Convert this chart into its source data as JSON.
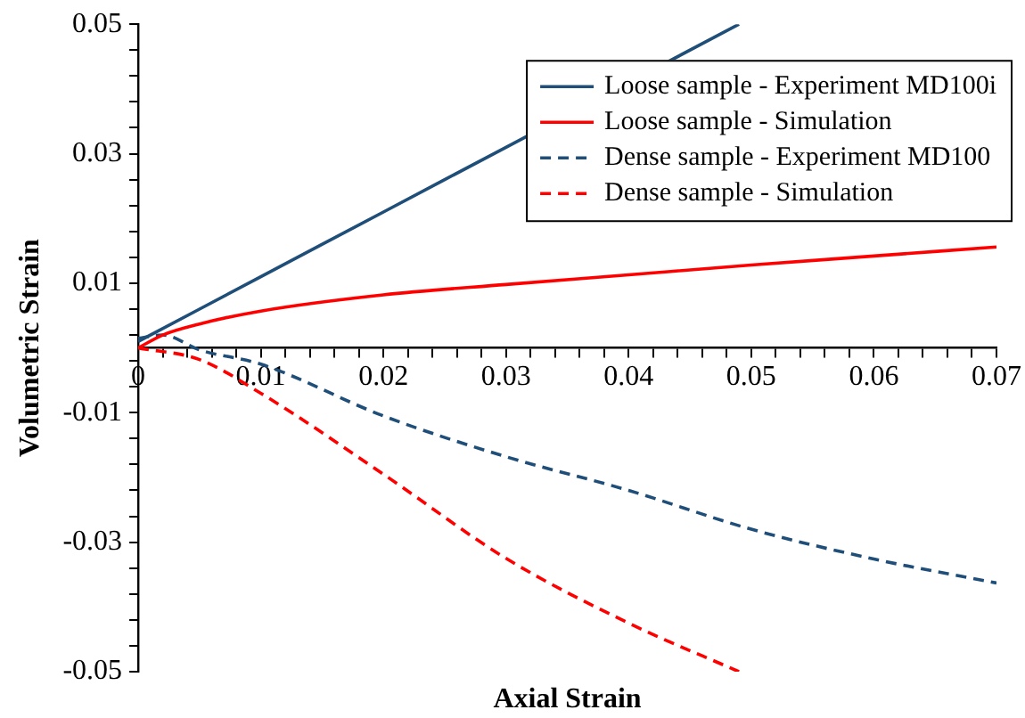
{
  "chart_data": {
    "type": "line",
    "xlabel": "Axial Strain",
    "ylabel": "Volumetric Strain",
    "xlim": [
      0,
      0.07
    ],
    "ylim": [
      -0.05,
      0.05
    ],
    "xticks": [
      0,
      {
        "value": 0.002,
        "label": null
      },
      {
        "value": 0.004,
        "label": null
      },
      {
        "value": 0.006,
        "label": null
      },
      {
        "value": 0.008,
        "label": null
      },
      0.01,
      {
        "value": 0.012,
        "label": null
      },
      {
        "value": 0.014,
        "label": null
      },
      {
        "value": 0.016,
        "label": null
      },
      {
        "value": 0.018,
        "label": null
      },
      0.02,
      {
        "value": 0.022,
        "label": null
      },
      {
        "value": 0.024,
        "label": null
      },
      {
        "value": 0.026,
        "label": null
      },
      {
        "value": 0.028,
        "label": null
      },
      0.03,
      {
        "value": 0.032,
        "label": null
      },
      {
        "value": 0.034,
        "label": null
      },
      {
        "value": 0.036,
        "label": null
      },
      {
        "value": 0.038,
        "label": null
      },
      0.04,
      {
        "value": 0.042,
        "label": null
      },
      {
        "value": 0.044,
        "label": null
      },
      {
        "value": 0.046,
        "label": null
      },
      {
        "value": 0.048,
        "label": null
      },
      0.05,
      {
        "value": 0.052,
        "label": null
      },
      {
        "value": 0.054,
        "label": null
      },
      {
        "value": 0.056,
        "label": null
      },
      {
        "value": 0.058,
        "label": null
      },
      0.06,
      {
        "value": 0.062,
        "label": null
      },
      {
        "value": 0.064,
        "label": null
      },
      {
        "value": 0.066,
        "label": null
      },
      {
        "value": 0.068,
        "label": null
      },
      0.07
    ],
    "yticks": [
      -0.05,
      {
        "value": -0.046,
        "label": null
      },
      {
        "value": -0.042,
        "label": null
      },
      {
        "value": -0.038,
        "label": null
      },
      {
        "value": -0.034,
        "label": null
      },
      -0.03,
      {
        "value": -0.026,
        "label": null
      },
      {
        "value": -0.022,
        "label": null
      },
      {
        "value": -0.018,
        "label": null
      },
      {
        "value": -0.014,
        "label": null
      },
      -0.01,
      {
        "value": -0.006,
        "label": null
      },
      {
        "value": -0.002,
        "label": null
      },
      {
        "value": 0.002,
        "label": null
      },
      {
        "value": 0.006,
        "label": null
      },
      0.01,
      {
        "value": 0.014,
        "label": null
      },
      {
        "value": 0.018,
        "label": null
      },
      {
        "value": 0.022,
        "label": null
      },
      {
        "value": 0.026,
        "label": null
      },
      0.03,
      {
        "value": 0.034,
        "label": null
      },
      {
        "value": 0.038,
        "label": null
      },
      {
        "value": 0.042,
        "label": null
      },
      {
        "value": 0.046,
        "label": null
      },
      0.05
    ],
    "grid": false,
    "legend": "top right",
    "marker": "none",
    "series": [
      {
        "name": "Loose sample - Experiment MD100i",
        "color": "#1f4e79",
        "line_style": "solid",
        "x": [
          0,
          0.01,
          0.02,
          0.03,
          0.049
        ],
        "values": [
          0.001,
          0.011,
          0.021,
          0.031,
          0.05
        ]
      },
      {
        "name": "Loose sample - Simulation",
        "color": "#ff0000",
        "line_style": "solid",
        "x": [
          0,
          0.002,
          0.005,
          0.01,
          0.02,
          0.03,
          0.04,
          0.05,
          0.06,
          0.07
        ],
        "values": [
          0,
          0.002,
          0.0037,
          0.0057,
          0.0082,
          0.0098,
          0.0113,
          0.0128,
          0.0142,
          0.0156
        ]
      },
      {
        "name": "Dense sample - Experiment MD100",
        "color": "#1f4e79",
        "line_style": "dashed",
        "x": [
          0,
          0.002,
          0.005,
          0.01,
          0.02,
          0.03,
          0.04,
          0.05,
          0.06,
          0.07
        ],
        "values": [
          0.0015,
          0.002,
          -0.0003,
          -0.0025,
          -0.0105,
          -0.0168,
          -0.022,
          -0.028,
          -0.0326,
          -0.0363
        ]
      },
      {
        "name": "Dense sample - Simulation",
        "color": "#ff0000",
        "line_style": "dashed",
        "x": [
          0,
          0.005,
          0.01,
          0.02,
          0.03,
          0.04,
          0.049
        ],
        "values": [
          0,
          -0.0018,
          -0.007,
          -0.0195,
          -0.0325,
          -0.0425,
          -0.05
        ]
      }
    ]
  }
}
